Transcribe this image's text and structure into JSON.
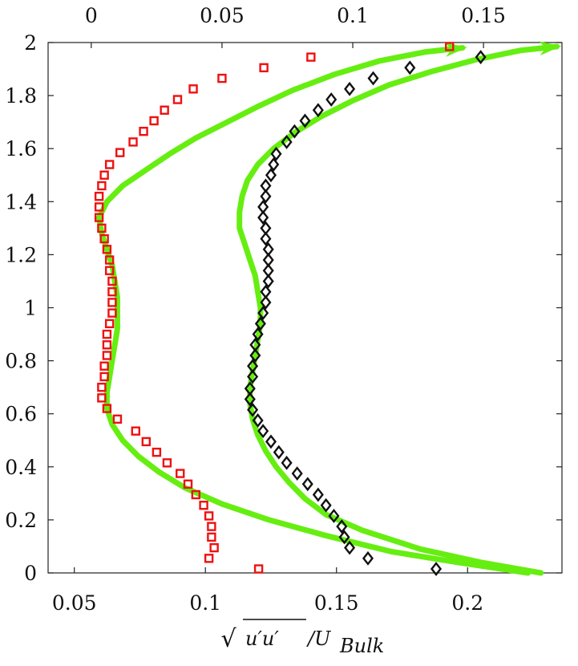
{
  "chart_data": {
    "type": "line",
    "title": "",
    "grid": false,
    "legend": "none",
    "colors": {
      "curve": "#66ee11",
      "squares": "#ee1111",
      "diamonds": "#111111",
      "axis": "#222222",
      "background": "#ffffff"
    },
    "y_axis": {
      "label": "",
      "ylim": [
        0,
        2
      ],
      "ticks": [
        0,
        0.2,
        0.4,
        0.6,
        0.8,
        1,
        1.2,
        1.4,
        1.6,
        1.8,
        2
      ],
      "tick_labels": [
        "0",
        "0.2",
        "0.4",
        "0.6",
        "0.8",
        "1",
        "1.2",
        "1.4",
        "1.6",
        "1.8",
        "2"
      ]
    },
    "x_axis_bottom": {
      "label_parts": {
        "sqrt_body": "u′u′",
        "rest": "/U",
        "subscript": "Bulk"
      },
      "xlim": [
        0.04,
        0.236
      ],
      "ticks": [
        0.05,
        0.1,
        0.15,
        0.2
      ],
      "tick_labels": [
        "0.05",
        "0.1",
        "0.15",
        "0.2"
      ]
    },
    "x_axis_top": {
      "label": "",
      "xlim": [
        -0.0165,
        0.18
      ],
      "ticks": [
        0,
        0.05,
        0.1,
        0.15
      ],
      "tick_labels": [
        "0",
        "0.05",
        "0.1",
        "0.15"
      ]
    },
    "series": [
      {
        "axis": "top",
        "style": "line",
        "arrow": true,
        "points": [
          [
            0.167,
            0.0
          ],
          [
            0.14,
            0.04
          ],
          [
            0.115,
            0.08
          ],
          [
            0.09,
            0.14
          ],
          [
            0.068,
            0.2
          ],
          [
            0.05,
            0.26
          ],
          [
            0.036,
            0.32
          ],
          [
            0.026,
            0.38
          ],
          [
            0.018,
            0.44
          ],
          [
            0.012,
            0.5
          ],
          [
            0.008,
            0.56
          ],
          [
            0.006,
            0.62
          ],
          [
            0.006,
            0.68
          ],
          [
            0.007,
            0.74
          ],
          [
            0.008,
            0.8
          ],
          [
            0.009,
            0.86
          ],
          [
            0.01,
            0.92
          ],
          [
            0.01,
            0.98
          ],
          [
            0.01,
            1.04
          ],
          [
            0.009,
            1.1
          ],
          [
            0.008,
            1.16
          ],
          [
            0.006,
            1.22
          ],
          [
            0.004,
            1.28
          ],
          [
            0.003,
            1.34
          ],
          [
            0.006,
            1.4
          ],
          [
            0.012,
            1.46
          ],
          [
            0.021,
            1.52
          ],
          [
            0.03,
            1.58
          ],
          [
            0.04,
            1.64
          ],
          [
            0.052,
            1.7
          ],
          [
            0.064,
            1.76
          ],
          [
            0.077,
            1.82
          ],
          [
            0.093,
            1.88
          ],
          [
            0.11,
            1.93
          ],
          [
            0.128,
            1.965
          ],
          [
            0.142,
            1.98
          ]
        ]
      },
      {
        "axis": "bottom",
        "style": "line",
        "arrow": true,
        "points": [
          [
            0.228,
            0.0
          ],
          [
            0.205,
            0.04
          ],
          [
            0.182,
            0.09
          ],
          [
            0.16,
            0.16
          ],
          [
            0.146,
            0.22
          ],
          [
            0.138,
            0.28
          ],
          [
            0.132,
            0.34
          ],
          [
            0.127,
            0.4
          ],
          [
            0.123,
            0.46
          ],
          [
            0.12,
            0.52
          ],
          [
            0.118,
            0.58
          ],
          [
            0.117,
            0.64
          ],
          [
            0.117,
            0.7
          ],
          [
            0.118,
            0.76
          ],
          [
            0.119,
            0.82
          ],
          [
            0.12,
            0.88
          ],
          [
            0.121,
            0.94
          ],
          [
            0.121,
            1.0
          ],
          [
            0.12,
            1.06
          ],
          [
            0.119,
            1.12
          ],
          [
            0.117,
            1.18
          ],
          [
            0.115,
            1.24
          ],
          [
            0.113,
            1.3
          ],
          [
            0.113,
            1.36
          ],
          [
            0.114,
            1.42
          ],
          [
            0.116,
            1.48
          ],
          [
            0.12,
            1.54
          ],
          [
            0.126,
            1.6
          ],
          [
            0.134,
            1.66
          ],
          [
            0.144,
            1.72
          ],
          [
            0.156,
            1.78
          ],
          [
            0.17,
            1.84
          ],
          [
            0.186,
            1.89
          ],
          [
            0.203,
            1.935
          ],
          [
            0.22,
            1.97
          ],
          [
            0.234,
            1.985
          ]
        ]
      },
      {
        "axis": "top",
        "style": "square-markers",
        "points": [
          [
            0.064,
            0.015
          ],
          [
            0.045,
            0.055
          ],
          [
            0.047,
            0.095
          ],
          [
            0.046,
            0.135
          ],
          [
            0.046,
            0.175
          ],
          [
            0.045,
            0.215
          ],
          [
            0.043,
            0.255
          ],
          [
            0.04,
            0.295
          ],
          [
            0.037,
            0.335
          ],
          [
            0.034,
            0.375
          ],
          [
            0.029,
            0.415
          ],
          [
            0.025,
            0.455
          ],
          [
            0.021,
            0.495
          ],
          [
            0.017,
            0.535
          ],
          [
            0.01,
            0.58
          ],
          [
            0.006,
            0.62
          ],
          [
            0.004,
            0.66
          ],
          [
            0.004,
            0.7
          ],
          [
            0.005,
            0.74
          ],
          [
            0.005,
            0.78
          ],
          [
            0.006,
            0.82
          ],
          [
            0.006,
            0.86
          ],
          [
            0.006,
            0.9
          ],
          [
            0.007,
            0.94
          ],
          [
            0.008,
            0.98
          ],
          [
            0.008,
            1.02
          ],
          [
            0.008,
            1.06
          ],
          [
            0.008,
            1.1
          ],
          [
            0.007,
            1.14
          ],
          [
            0.007,
            1.18
          ],
          [
            0.006,
            1.22
          ],
          [
            0.005,
            1.26
          ],
          [
            0.004,
            1.3
          ],
          [
            0.003,
            1.34
          ],
          [
            0.003,
            1.38
          ],
          [
            0.003,
            1.42
          ],
          [
            0.004,
            1.46
          ],
          [
            0.005,
            1.5
          ],
          [
            0.007,
            1.54
          ],
          [
            0.011,
            1.585
          ],
          [
            0.016,
            1.625
          ],
          [
            0.02,
            1.665
          ],
          [
            0.024,
            1.705
          ],
          [
            0.028,
            1.745
          ],
          [
            0.033,
            1.785
          ],
          [
            0.039,
            1.825
          ],
          [
            0.05,
            1.865
          ],
          [
            0.066,
            1.905
          ],
          [
            0.084,
            1.945
          ],
          [
            0.137,
            1.985
          ]
        ]
      },
      {
        "axis": "bottom",
        "style": "diamond-markers",
        "points": [
          [
            0.188,
            0.015
          ],
          [
            0.162,
            0.055
          ],
          [
            0.155,
            0.095
          ],
          [
            0.153,
            0.135
          ],
          [
            0.152,
            0.175
          ],
          [
            0.149,
            0.215
          ],
          [
            0.146,
            0.255
          ],
          [
            0.143,
            0.295
          ],
          [
            0.139,
            0.335
          ],
          [
            0.135,
            0.375
          ],
          [
            0.131,
            0.415
          ],
          [
            0.128,
            0.455
          ],
          [
            0.125,
            0.495
          ],
          [
            0.122,
            0.535
          ],
          [
            0.12,
            0.575
          ],
          [
            0.118,
            0.615
          ],
          [
            0.117,
            0.655
          ],
          [
            0.117,
            0.695
          ],
          [
            0.118,
            0.74
          ],
          [
            0.118,
            0.78
          ],
          [
            0.119,
            0.82
          ],
          [
            0.119,
            0.86
          ],
          [
            0.12,
            0.9
          ],
          [
            0.121,
            0.94
          ],
          [
            0.122,
            0.98
          ],
          [
            0.123,
            1.02
          ],
          [
            0.123,
            1.06
          ],
          [
            0.124,
            1.1
          ],
          [
            0.124,
            1.14
          ],
          [
            0.124,
            1.18
          ],
          [
            0.124,
            1.22
          ],
          [
            0.123,
            1.26
          ],
          [
            0.123,
            1.3
          ],
          [
            0.122,
            1.34
          ],
          [
            0.122,
            1.38
          ],
          [
            0.123,
            1.42
          ],
          [
            0.123,
            1.46
          ],
          [
            0.125,
            1.5
          ],
          [
            0.126,
            1.54
          ],
          [
            0.127,
            1.58
          ],
          [
            0.131,
            1.625
          ],
          [
            0.134,
            1.665
          ],
          [
            0.138,
            1.705
          ],
          [
            0.143,
            1.745
          ],
          [
            0.148,
            1.785
          ],
          [
            0.155,
            1.825
          ],
          [
            0.164,
            1.865
          ],
          [
            0.178,
            1.905
          ],
          [
            0.205,
            1.945
          ]
        ]
      }
    ]
  }
}
